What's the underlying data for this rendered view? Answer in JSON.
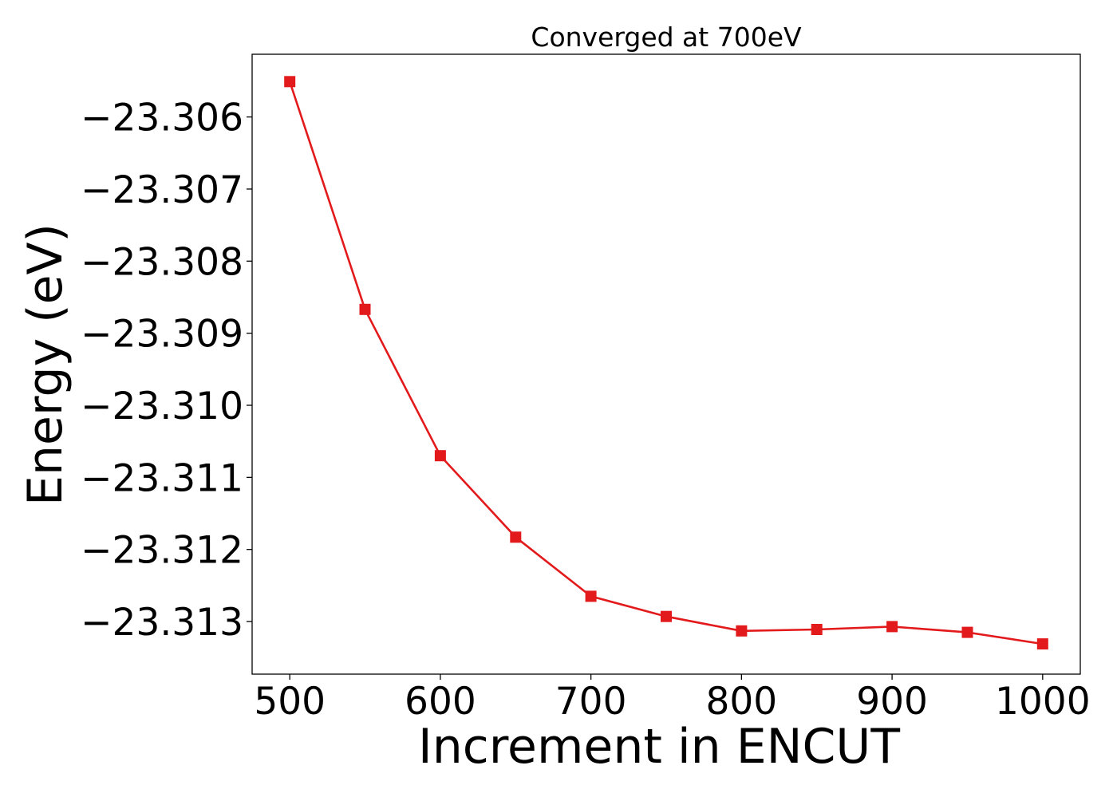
{
  "chart_data": {
    "type": "line",
    "title": "Converged at 700eV",
    "xlabel": "Increment in ENCUT",
    "ylabel": "Energy (eV)",
    "xlim": [
      475,
      1025
    ],
    "ylim": [
      -23.31373,
      -23.30513
    ],
    "xticks": [
      500,
      600,
      700,
      800,
      900,
      1000
    ],
    "xtick_labels": [
      "500",
      "600",
      "700",
      "800",
      "900",
      "1000"
    ],
    "yticks": [
      -23.306,
      -23.307,
      -23.308,
      -23.309,
      -23.31,
      -23.311,
      -23.312,
      -23.313
    ],
    "ytick_labels": [
      "−23.306",
      "−23.307",
      "−23.308",
      "−23.309",
      "−23.310",
      "−23.311",
      "−23.312",
      "−23.313"
    ],
    "grid": false,
    "legend": "none",
    "series": [
      {
        "color": "#e31a1c",
        "marker": "square",
        "x": [
          500,
          550,
          600,
          650,
          700,
          750,
          800,
          850,
          900,
          950,
          1000
        ],
        "y": [
          -23.30551,
          -23.30867,
          -23.3107,
          -23.31183,
          -23.31265,
          -23.31293,
          -23.31313,
          -23.31311,
          -23.31307,
          -23.31315,
          -23.31331
        ]
      }
    ]
  }
}
